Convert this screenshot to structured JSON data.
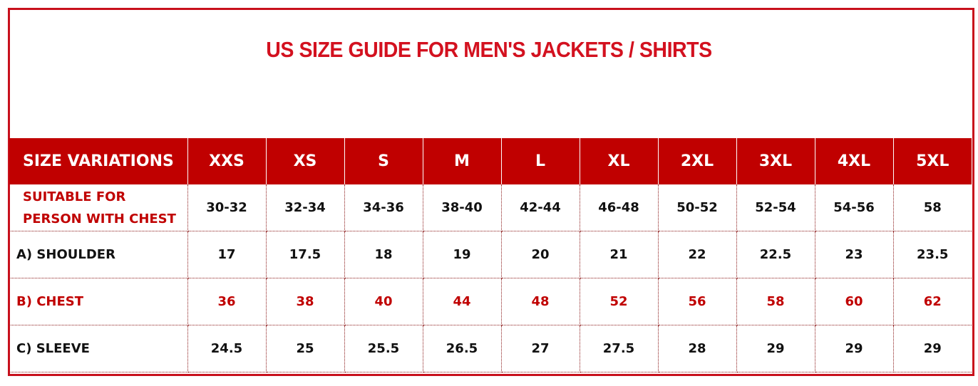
{
  "title": "US SIZE GUIDE FOR MEN'S JACKETS / SHIRTS",
  "colors": {
    "accent": "#c00000",
    "title": "#d3111f"
  },
  "table": {
    "header": [
      "SIZE VARIATIONS",
      "XXS",
      "XS",
      "S",
      "M",
      "L",
      "XL",
      "2XL",
      "3XL",
      "4XL",
      "5XL"
    ],
    "rows": [
      {
        "label": "SUITABLE FOR PERSON WITH CHEST",
        "values": [
          "30-32",
          "32-34",
          "34-36",
          "38-40",
          "42-44",
          "46-48",
          "50-52",
          "52-54",
          "54-56",
          "58"
        ]
      },
      {
        "label": "A) SHOULDER",
        "values": [
          "17",
          "17.5",
          "18",
          "19",
          "20",
          "21",
          "22",
          "22.5",
          "23",
          "23.5"
        ]
      },
      {
        "label": "B) CHEST",
        "values": [
          "36",
          "38",
          "40",
          "44",
          "48",
          "52",
          "56",
          "58",
          "60",
          "62"
        ]
      },
      {
        "label": "C) SLEEVE",
        "values": [
          "24.5",
          "25",
          "25.5",
          "26.5",
          "27",
          "27.5",
          "28",
          "29",
          "29",
          "29"
        ]
      }
    ]
  }
}
